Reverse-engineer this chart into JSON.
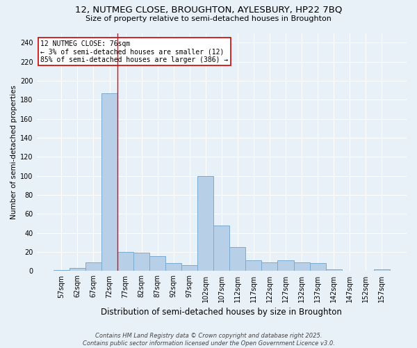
{
  "title1": "12, NUTMEG CLOSE, BROUGHTON, AYLESBURY, HP22 7BQ",
  "title2": "Size of property relative to semi-detached houses in Broughton",
  "xlabel": "Distribution of semi-detached houses by size in Broughton",
  "ylabel": "Number of semi-detached properties",
  "bins": [
    "57sqm",
    "62sqm",
    "67sqm",
    "72sqm",
    "77sqm",
    "82sqm",
    "87sqm",
    "92sqm",
    "97sqm",
    "102sqm",
    "107sqm",
    "112sqm",
    "117sqm",
    "122sqm",
    "127sqm",
    "132sqm",
    "137sqm",
    "142sqm",
    "147sqm",
    "152sqm",
    "157sqm"
  ],
  "values": [
    1,
    3,
    9,
    187,
    20,
    19,
    16,
    8,
    6,
    100,
    48,
    25,
    11,
    9,
    11,
    9,
    8,
    2,
    0,
    0,
    2
  ],
  "bar_color": "#b8cfe8",
  "bar_edge_color": "#7aaace",
  "background_color": "#e8f0f8",
  "grid_color": "#ffffff",
  "red_line_x": 3.5,
  "annotation_text": "12 NUTMEG CLOSE: 76sqm\n← 3% of semi-detached houses are smaller (12)\n85% of semi-detached houses are larger (386) →",
  "annotation_box_color": "#ffffff",
  "annotation_box_edge": "#cc0000",
  "footer": "Contains HM Land Registry data © Crown copyright and database right 2025.\nContains public sector information licensed under the Open Government Licence v3.0.",
  "ylim": [
    0,
    250
  ],
  "yticks": [
    0,
    20,
    40,
    60,
    80,
    100,
    120,
    140,
    160,
    180,
    200,
    220,
    240
  ],
  "title1_fontsize": 9.5,
  "title2_fontsize": 8.0,
  "xlabel_fontsize": 8.5,
  "ylabel_fontsize": 7.5,
  "tick_fontsize": 7.0,
  "ann_fontsize": 7.0,
  "footer_fontsize": 6.0
}
